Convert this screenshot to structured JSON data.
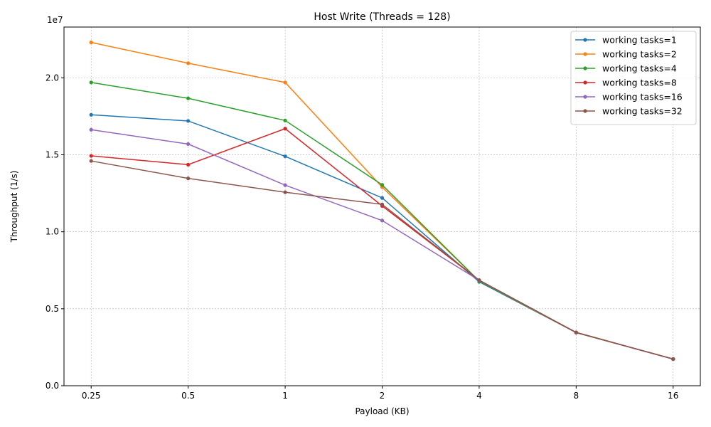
{
  "chart_data": {
    "type": "line",
    "title": "Host Write (Threads = 128)",
    "xlabel": "Payload (KB)",
    "ylabel": "Throughput (1/s)",
    "y_offset_label": "1e7",
    "categories": [
      "0.25",
      "0.5",
      "1",
      "2",
      "4",
      "8",
      "16"
    ],
    "ylim": [
      0,
      23300000.0
    ],
    "yticks": [
      0,
      5000000,
      10000000,
      15000000,
      20000000
    ],
    "ytick_labels": [
      "0.0",
      "0.5",
      "1.0",
      "1.5",
      "2.0"
    ],
    "grid": true,
    "legend_position": "top-right",
    "series": [
      {
        "name": "working tasks=1",
        "color": "#1f77b4",
        "values": [
          17600000,
          17200000,
          14900000,
          12200000,
          6750000,
          3450000,
          1730000
        ]
      },
      {
        "name": "working tasks=2",
        "color": "#ff7f0e",
        "values": [
          22300000,
          20950000,
          19700000,
          12900000,
          6800000,
          3450000,
          1730000
        ]
      },
      {
        "name": "working tasks=4",
        "color": "#2ca02c",
        "values": [
          19700000,
          18670000,
          17230000,
          13050000,
          6800000,
          3460000,
          1730000
        ]
      },
      {
        "name": "working tasks=8",
        "color": "#d62728",
        "values": [
          14930000,
          14360000,
          16700000,
          11680000,
          6850000,
          3460000,
          1730000
        ]
      },
      {
        "name": "working tasks=16",
        "color": "#9467bd",
        "values": [
          16630000,
          15700000,
          13030000,
          10730000,
          6850000,
          3460000,
          1730000
        ]
      },
      {
        "name": "working tasks=32",
        "color": "#8c564b",
        "values": [
          14600000,
          13470000,
          12570000,
          11780000,
          6860000,
          3460000,
          1740000
        ]
      }
    ]
  }
}
